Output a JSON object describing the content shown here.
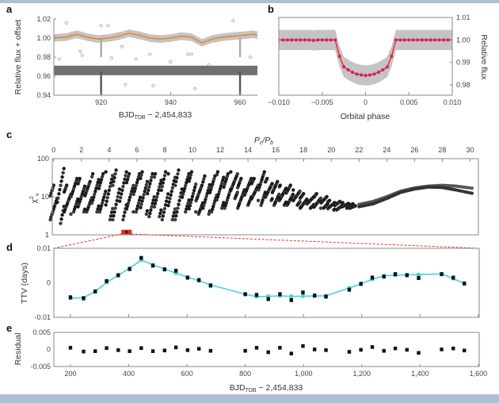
{
  "colors": {
    "band": "#aebfd4",
    "orange": "#e8872a",
    "magenta": "#d0206e",
    "model_red": "#ff2a2a",
    "cyan": "#3fd6e0",
    "light_gray": "#c4c4c4",
    "dark_gray": "#707070",
    "red_box": "#e8321e"
  },
  "chart_data": [
    {
      "panel": "a",
      "type": "scatter",
      "xlabel": "BJD",
      "xlabel_sub": "TDB",
      "xlabel_suffix": " − 2,454,833",
      "ylabel": "Relative flux + offset",
      "xlim": [
        906.4,
        965
      ],
      "ylim": [
        0.94,
        1.02
      ],
      "xticks": [
        920,
        940,
        960
      ],
      "xtick_labels": [
        "920",
        "940",
        "960"
      ],
      "yticks": [
        0.94,
        0.96,
        0.98,
        1.0,
        1.02
      ],
      "ytick_labels": [
        "0.94",
        "0.96",
        "0.98",
        "1.00",
        "1.02"
      ],
      "trend_curve": {
        "x": [
          906,
          910,
          913,
          916,
          919,
          922,
          925,
          928,
          931,
          934,
          937,
          940,
          943,
          946,
          949,
          952,
          955,
          958,
          961,
          964,
          965
        ],
        "y": [
          1.0,
          1.001,
          1.004,
          1.001,
          0.999,
          1.0,
          1.002,
          1.005,
          1.003,
          1.0,
          0.999,
          1.0,
          1.002,
          1.001,
          0.995,
          0.999,
          1.001,
          1.002,
          1.003,
          1.004,
          1.003
        ]
      },
      "upper_band_halfwidth": 0.004,
      "detrended_band": [
        0.961,
        0.971
      ],
      "transits_x": [
        920,
        960
      ],
      "outliers": {
        "x": [
          908,
          910,
          914,
          914.5,
          920,
          922,
          923,
          927,
          926,
          930,
          935,
          934,
          940,
          945,
          946,
          947,
          951,
          958,
          963
        ],
        "y": [
          0.978,
          1.016,
          0.986,
          0.982,
          1.013,
          1.013,
          0.979,
          0.951,
          0.991,
          0.978,
          0.95,
          0.983,
          0.975,
          0.983,
          0.983,
          0.947,
          0.972,
          1.018,
          0.98
        ]
      }
    },
    {
      "panel": "b",
      "type": "line",
      "xlabel": "Orbital phase",
      "ylabel": "Relative flux",
      "xlim": [
        -0.01,
        0.01
      ],
      "ylim": [
        0.9754,
        1.01
      ],
      "xticks": [
        -0.01,
        -0.005,
        0,
        0.005,
        0.01
      ],
      "xtick_labels": [
        "−0.010",
        "−0.005",
        "0",
        "0.005",
        "0.010"
      ],
      "yticks": [
        0.98,
        0.99,
        1.0,
        1.01
      ],
      "ytick_labels": [
        "0.98",
        "0.99",
        "1.00",
        "1.01"
      ],
      "binned": {
        "x": [
          -0.0095,
          -0.009,
          -0.0085,
          -0.008,
          -0.0075,
          -0.007,
          -0.0065,
          -0.006,
          -0.0055,
          -0.005,
          -0.0045,
          -0.004,
          -0.0035,
          -0.003,
          -0.0025,
          -0.002,
          -0.0015,
          -0.001,
          -0.0005,
          0,
          0.0005,
          0.001,
          0.0015,
          0.002,
          0.0025,
          0.003,
          0.0035,
          0.004,
          0.0045,
          0.005,
          0.0055,
          0.006,
          0.0065,
          0.007,
          0.0075,
          0.008,
          0.0085,
          0.009,
          0.0095
        ],
        "y": [
          1.0,
          1.0,
          1.0,
          1.0,
          1.0,
          1.0,
          1.0,
          0.9998,
          1.0,
          1.0,
          1.0,
          1.0,
          1.0,
          0.9927,
          0.988,
          0.9867,
          0.9856,
          0.9848,
          0.9844,
          0.9842,
          0.9844,
          0.9848,
          0.9856,
          0.9867,
          0.988,
          0.9927,
          1.0,
          1.0,
          1.0,
          1.0,
          1.0,
          1.0,
          1.0,
          1.0,
          1.0,
          1.0,
          1.0,
          1.0,
          1.0
        ]
      },
      "scatter_halfwidth": 0.0045
    },
    {
      "panel": "c",
      "type": "scatter",
      "xlabel": "P",
      "xlabel_sub1": "c",
      "xlabel_slash": "/P",
      "xlabel_sub2": "b",
      "ylabel": "χ",
      "ylabel_sup": "2",
      "ylabel_sub": "ν",
      "xlim": [
        -0.1,
        30.6
      ],
      "ylim": [
        1,
        100
      ],
      "yscale": "log",
      "xticks": [
        0,
        2,
        4,
        6,
        8,
        10,
        12,
        14,
        16,
        18,
        20,
        22,
        24,
        26,
        28,
        30
      ],
      "xtick_labels": [
        "0",
        "2",
        "4",
        "6",
        "8",
        "10",
        "12",
        "14",
        "16",
        "18",
        "20",
        "22",
        "24",
        "26",
        "28",
        "30"
      ],
      "yticks": [
        1,
        10,
        100
      ],
      "ytick_labels": [
        "1",
        "10",
        "100"
      ],
      "scatter_envelope": {
        "x": [
          0,
          0.5,
          1,
          1.5,
          2,
          2.5,
          3,
          3.5,
          4,
          4.5,
          5,
          5.5,
          6,
          6.5,
          7,
          7.5,
          8,
          8.5,
          9,
          9.5,
          10,
          10.5,
          11,
          11.5,
          12,
          12.5,
          13,
          13.5,
          14,
          14.5,
          15,
          15.5,
          16,
          16.5,
          17,
          17.5,
          18,
          18.5,
          19,
          19.5,
          20,
          20.5,
          21,
          21.5
        ],
        "min": [
          2.5,
          2,
          3.5,
          4,
          4,
          4,
          4,
          4,
          2.5,
          2.5,
          2.5,
          4,
          4,
          3.5,
          3,
          3,
          2.5,
          2.5,
          2.5,
          4,
          4,
          3.5,
          3.5,
          4,
          5,
          5,
          9,
          5,
          6,
          8,
          6,
          8,
          6,
          6,
          6,
          6,
          5,
          5,
          5,
          5,
          4.5,
          4.5,
          5,
          5
        ],
        "max": [
          20,
          55,
          20,
          30,
          30,
          25,
          40,
          40,
          45,
          50,
          45,
          40,
          40,
          45,
          40,
          40,
          45,
          40,
          50,
          40,
          45,
          20,
          35,
          35,
          45,
          40,
          45,
          30,
          30,
          30,
          45,
          30,
          25,
          20,
          20,
          15,
          12,
          10,
          12,
          10,
          8,
          7.5,
          7,
          6.5
        ]
      },
      "smooth_branches": {
        "x": [
          22,
          23,
          24,
          25,
          26,
          27,
          28,
          29,
          30.3
        ],
        "upper": [
          6.3,
          7.5,
          10,
          14,
          17,
          19,
          20,
          19,
          16.5
        ],
        "lower": [
          5.5,
          6.5,
          9,
          13,
          16,
          18,
          17.5,
          15,
          12
        ]
      },
      "highlighted_x": [
        4.9,
        5.6
      ]
    },
    {
      "panel": "d",
      "type": "scatter",
      "ylabel": "TTV (days)",
      "xlim": [
        143,
        1603
      ],
      "ylim": [
        -0.01,
        0.01
      ],
      "yticks": [
        -0.01,
        0,
        0.01
      ],
      "ytick_labels": [
        "-0.01",
        "0",
        "0.01"
      ],
      "xticks": [
        200,
        400,
        600,
        800,
        1000,
        1200,
        1400,
        1600
      ],
      "x": [
        200,
        245,
        285,
        324,
        364,
        403,
        443,
        483,
        523,
        562,
        602,
        641,
        681,
        800,
        839,
        879,
        919,
        958,
        998,
        1038,
        1077,
        1157,
        1197,
        1236,
        1276,
        1315,
        1355,
        1395,
        1474,
        1514,
        1552
      ],
      "observed": [
        -0.0042,
        -0.0045,
        -0.0025,
        0.0005,
        0.0022,
        0.004,
        0.0072,
        0.005,
        0.0039,
        0.0035,
        0.0015,
        0.0008,
        -0.0008,
        -0.0033,
        -0.0035,
        -0.0047,
        -0.0033,
        -0.005,
        -0.0028,
        -0.0037,
        -0.004,
        -0.002,
        -0.0003,
        0.0015,
        0.0018,
        0.0025,
        0.0022,
        0.0014,
        0.0025,
        0.0015,
        -0.0002
      ],
      "model": [
        -0.0045,
        -0.0043,
        -0.0025,
        0.0001,
        0.0022,
        0.0042,
        0.0066,
        0.0052,
        0.004,
        0.0028,
        0.0016,
        0.0006,
        -0.0006,
        -0.0033,
        -0.004,
        -0.0039,
        -0.0038,
        -0.0039,
        -0.0039,
        -0.0038,
        -0.0038,
        -0.0015,
        -0.0003,
        0.001,
        0.002,
        0.0022,
        0.0023,
        0.0024,
        0.0026,
        0.0012,
        -0.0002
      ]
    },
    {
      "panel": "e",
      "type": "scatter",
      "ylabel": "Residual",
      "xlabel": "BJD",
      "xlabel_sub": "TDB",
      "xlabel_suffix": " − 2,454,833",
      "xlim": [
        143,
        1603
      ],
      "ylim": [
        -0.005,
        0.005
      ],
      "yticks": [
        -0.005,
        0,
        0.005
      ],
      "ytick_labels": [
        "-0.005",
        "0",
        "0.005"
      ],
      "xticks": [
        200,
        400,
        600,
        800,
        1000,
        1200,
        1400,
        1600
      ],
      "xtick_labels": [
        "200",
        "400",
        "600",
        "800",
        "1,000",
        "1,200",
        "1,400",
        "1,600"
      ],
      "x": [
        200,
        245,
        285,
        324,
        364,
        403,
        443,
        483,
        523,
        562,
        602,
        641,
        681,
        800,
        839,
        879,
        919,
        958,
        998,
        1038,
        1077,
        1157,
        1197,
        1236,
        1276,
        1315,
        1355,
        1395,
        1474,
        1514,
        1552
      ],
      "residual": [
        0.0005,
        -0.0006,
        -0.0005,
        0.0004,
        -0.0002,
        -0.0005,
        0.0004,
        -0.0005,
        -0.0003,
        0.0006,
        -0.0002,
        0.0002,
        -0.0004,
        -0.0004,
        0.0005,
        -0.0008,
        0.0005,
        -0.0012,
        0.001,
        0,
        -0.0002,
        -0.0007,
        -0.0001,
        0.0007,
        -0.0004,
        0.0003,
        -0.0001,
        -0.001,
        0,
        0.0003,
        -0.0003
      ]
    }
  ],
  "panel_labels": [
    "a",
    "b",
    "c",
    "d",
    "e"
  ]
}
